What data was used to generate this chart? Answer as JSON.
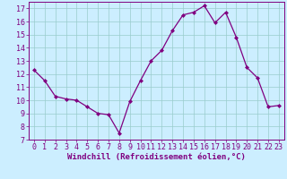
{
  "x": [
    0,
    1,
    2,
    3,
    4,
    5,
    6,
    7,
    8,
    9,
    10,
    11,
    12,
    13,
    14,
    15,
    16,
    17,
    18,
    19,
    20,
    21,
    22,
    23
  ],
  "y": [
    12.3,
    11.5,
    10.3,
    10.1,
    10.0,
    9.5,
    9.0,
    8.9,
    7.5,
    9.9,
    11.5,
    13.0,
    13.8,
    15.3,
    16.5,
    16.7,
    17.2,
    15.9,
    16.7,
    14.8,
    12.5,
    11.7,
    9.5,
    9.6
  ],
  "xlabel": "Windchill (Refroidissement éolien,°C)",
  "ylim": [
    7,
    17.5
  ],
  "yticks": [
    7,
    8,
    9,
    10,
    11,
    12,
    13,
    14,
    15,
    16,
    17
  ],
  "xticks": [
    0,
    1,
    2,
    3,
    4,
    5,
    6,
    7,
    8,
    9,
    10,
    11,
    12,
    13,
    14,
    15,
    16,
    17,
    18,
    19,
    20,
    21,
    22,
    23
  ],
  "line_color": "#800080",
  "marker": "D",
  "marker_size": 2.0,
  "bg_color": "#cceeff",
  "grid_color": "#99cccc",
  "xlabel_color": "#800080",
  "tick_color": "#800080",
  "xlabel_fontsize": 6.5,
  "tick_fontsize": 6.0,
  "xlim": [
    -0.5,
    23.5
  ]
}
